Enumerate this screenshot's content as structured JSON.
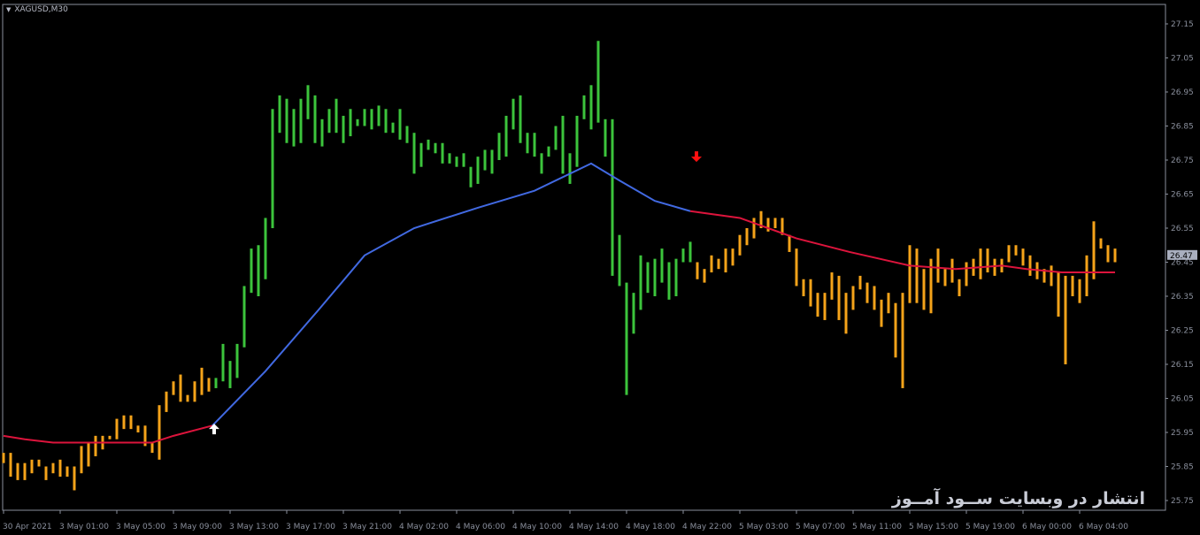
{
  "header": {
    "symbol_timeframe": "XAGUSD,M30",
    "collapse_icon": "triangle-down-icon"
  },
  "watermark": "انتشار در وبسایت ســود آمــوز",
  "colors": {
    "background": "#000000",
    "bull": "#3cc43c",
    "bear": "#f5a31a",
    "ma_up": "#4169e1",
    "ma_down": "#dc143c",
    "axis": "#8a8f9c",
    "buy_arrow": "#ffffff",
    "sell_arrow": "#ff1010",
    "price_tag": "#a9afbf"
  },
  "chart_data": {
    "type": "ohlc-bar",
    "symbol": "XAGUSD",
    "timeframe": "M30",
    "ylim": [
      25.72,
      27.2
    ],
    "y_ticks": [
      "27.15",
      "27.05",
      "26.95",
      "26.85",
      "26.75",
      "26.65",
      "26.55",
      "26.45",
      "26.35",
      "26.25",
      "26.15",
      "26.05",
      "25.95",
      "25.85",
      "25.75"
    ],
    "x_ticks": [
      {
        "bar": 0,
        "label": "30 Apr 2021"
      },
      {
        "bar": 8,
        "label": "3 May 01:00"
      },
      {
        "bar": 16,
        "label": "3 May 05:00"
      },
      {
        "bar": 24,
        "label": "3 May 09:00"
      },
      {
        "bar": 32,
        "label": "3 May 13:00"
      },
      {
        "bar": 40,
        "label": "3 May 17:00"
      },
      {
        "bar": 48,
        "label": "3 May 21:00"
      },
      {
        "bar": 56,
        "label": "4 May 02:00"
      },
      {
        "bar": 64,
        "label": "4 May 06:00"
      },
      {
        "bar": 72,
        "label": "4 May 10:00"
      },
      {
        "bar": 80,
        "label": "4 May 14:00"
      },
      {
        "bar": 88,
        "label": "4 May 18:00"
      },
      {
        "bar": 96,
        "label": "4 May 22:00"
      },
      {
        "bar": 104,
        "label": "5 May 03:00"
      },
      {
        "bar": 112,
        "label": "5 May 07:00"
      },
      {
        "bar": 120,
        "label": "5 May 11:00"
      },
      {
        "bar": 128,
        "label": "5 May 15:00"
      },
      {
        "bar": 136,
        "label": "5 May 19:00"
      },
      {
        "bar": 144,
        "label": "6 May 00:00"
      },
      {
        "bar": 152,
        "label": "6 May 04:00"
      }
    ],
    "current_price": "26.47",
    "bull_bar_range": [
      30,
      97
    ],
    "bars_high_low": [
      [
        25.89,
        25.86
      ],
      [
        25.89,
        25.82
      ],
      [
        25.86,
        25.81
      ],
      [
        25.86,
        25.81
      ],
      [
        25.87,
        25.83
      ],
      [
        25.87,
        25.85
      ],
      [
        25.85,
        25.81
      ],
      [
        25.86,
        25.83
      ],
      [
        25.87,
        25.82
      ],
      [
        25.85,
        25.82
      ],
      [
        25.85,
        25.78
      ],
      [
        25.91,
        25.83
      ],
      [
        25.92,
        25.85
      ],
      [
        25.94,
        25.88
      ],
      [
        25.94,
        25.9
      ],
      [
        25.94,
        25.93
      ],
      [
        25.99,
        25.93
      ],
      [
        26.0,
        25.96
      ],
      [
        26.0,
        25.96
      ],
      [
        25.97,
        25.95
      ],
      [
        25.97,
        25.91
      ],
      [
        25.92,
        25.89
      ],
      [
        26.03,
        25.87
      ],
      [
        26.07,
        26.01
      ],
      [
        26.1,
        26.06
      ],
      [
        26.12,
        26.04
      ],
      [
        26.06,
        26.04
      ],
      [
        26.1,
        26.04
      ],
      [
        26.14,
        26.06
      ],
      [
        26.11,
        26.07
      ],
      [
        26.11,
        26.08
      ],
      [
        26.21,
        26.1
      ],
      [
        26.16,
        26.08
      ],
      [
        26.21,
        26.11
      ],
      [
        26.38,
        26.2
      ],
      [
        26.49,
        26.36
      ],
      [
        26.5,
        26.35
      ],
      [
        26.58,
        26.4
      ],
      [
        26.9,
        26.55
      ],
      [
        26.94,
        26.83
      ],
      [
        26.93,
        26.8
      ],
      [
        26.9,
        26.79
      ],
      [
        26.93,
        26.8
      ],
      [
        26.97,
        26.87
      ],
      [
        26.94,
        26.8
      ],
      [
        26.87,
        26.79
      ],
      [
        26.9,
        26.83
      ],
      [
        26.93,
        26.83
      ],
      [
        26.88,
        26.8
      ],
      [
        26.9,
        26.82
      ],
      [
        26.87,
        26.85
      ],
      [
        26.9,
        26.85
      ],
      [
        26.9,
        26.84
      ],
      [
        26.91,
        26.85
      ],
      [
        26.9,
        26.83
      ],
      [
        26.86,
        26.83
      ],
      [
        26.9,
        26.81
      ],
      [
        26.85,
        26.8
      ],
      [
        26.83,
        26.71
      ],
      [
        26.8,
        26.73
      ],
      [
        26.81,
        26.78
      ],
      [
        26.8,
        26.77
      ],
      [
        26.8,
        26.74
      ],
      [
        26.77,
        26.74
      ],
      [
        26.76,
        26.73
      ],
      [
        26.77,
        26.73
      ],
      [
        26.73,
        26.67
      ],
      [
        26.76,
        26.68
      ],
      [
        26.78,
        26.72
      ],
      [
        26.78,
        26.71
      ],
      [
        26.83,
        26.75
      ],
      [
        26.88,
        26.76
      ],
      [
        26.93,
        26.84
      ],
      [
        26.94,
        26.8
      ],
      [
        26.83,
        26.77
      ],
      [
        26.83,
        26.76
      ],
      [
        26.77,
        26.71
      ],
      [
        26.79,
        26.76
      ],
      [
        26.85,
        26.78
      ],
      [
        26.88,
        26.71
      ],
      [
        26.77,
        26.68
      ],
      [
        26.88,
        26.73
      ],
      [
        26.94,
        26.87
      ],
      [
        26.97,
        26.84
      ],
      [
        27.1,
        26.86
      ],
      [
        26.87,
        26.76
      ],
      [
        26.87,
        26.41
      ],
      [
        26.53,
        26.38
      ],
      [
        26.39,
        26.06
      ],
      [
        26.36,
        26.24
      ],
      [
        26.47,
        26.31
      ],
      [
        26.45,
        26.36
      ],
      [
        26.46,
        26.35
      ],
      [
        26.49,
        26.39
      ],
      [
        26.45,
        26.34
      ],
      [
        26.46,
        26.35
      ],
      [
        26.49,
        26.45
      ],
      [
        26.51,
        26.45
      ],
      [
        26.45,
        26.4
      ],
      [
        26.43,
        26.39
      ],
      [
        26.47,
        26.42
      ],
      [
        26.46,
        26.43
      ],
      [
        26.49,
        26.42
      ],
      [
        26.49,
        26.44
      ],
      [
        26.53,
        26.47
      ],
      [
        26.55,
        26.5
      ],
      [
        26.58,
        26.52
      ],
      [
        26.6,
        26.55
      ],
      [
        26.58,
        26.54
      ],
      [
        26.58,
        26.55
      ],
      [
        26.58,
        26.53
      ],
      [
        26.53,
        26.48
      ],
      [
        26.49,
        26.38
      ],
      [
        26.4,
        26.35
      ],
      [
        26.4,
        26.32
      ],
      [
        26.36,
        26.29
      ],
      [
        26.36,
        26.28
      ],
      [
        26.42,
        26.34
      ],
      [
        26.41,
        26.28
      ],
      [
        26.36,
        26.24
      ],
      [
        26.38,
        26.31
      ],
      [
        26.41,
        26.37
      ],
      [
        26.39,
        26.33
      ],
      [
        26.38,
        26.31
      ],
      [
        26.34,
        26.26
      ],
      [
        26.36,
        26.3
      ],
      [
        26.33,
        26.17
      ],
      [
        26.36,
        26.08
      ],
      [
        26.5,
        26.33
      ],
      [
        26.49,
        26.33
      ],
      [
        26.43,
        26.31
      ],
      [
        26.46,
        26.3
      ],
      [
        26.49,
        26.39
      ],
      [
        26.43,
        26.38
      ],
      [
        26.46,
        26.39
      ],
      [
        26.4,
        26.35
      ],
      [
        26.45,
        26.38
      ],
      [
        26.46,
        26.41
      ],
      [
        26.49,
        26.4
      ],
      [
        26.49,
        26.42
      ],
      [
        26.46,
        26.41
      ],
      [
        26.46,
        26.42
      ],
      [
        26.5,
        26.45
      ],
      [
        26.5,
        26.47
      ],
      [
        26.49,
        26.44
      ],
      [
        26.47,
        26.41
      ],
      [
        26.45,
        26.4
      ],
      [
        26.43,
        26.39
      ],
      [
        26.44,
        26.38
      ],
      [
        26.42,
        26.29
      ],
      [
        26.41,
        26.15
      ],
      [
        26.41,
        26.35
      ],
      [
        26.4,
        26.33
      ],
      [
        26.47,
        26.35
      ],
      [
        26.57,
        26.4
      ],
      [
        26.52,
        26.49
      ],
      [
        26.5,
        26.45
      ],
      [
        26.49,
        26.45
      ]
    ],
    "moving_average": [
      {
        "trend": "down",
        "points": [
          [
            0,
            25.94
          ],
          [
            3,
            25.93
          ],
          [
            7,
            25.92
          ],
          [
            12,
            25.92
          ],
          [
            16,
            25.92
          ],
          [
            21,
            25.92
          ],
          [
            24,
            25.94
          ],
          [
            29.5,
            25.97
          ]
        ]
      },
      {
        "trend": "up",
        "points": [
          [
            29.5,
            25.97
          ],
          [
            37,
            26.13
          ],
          [
            44.5,
            26.31
          ],
          [
            51,
            26.47
          ],
          [
            58,
            26.55
          ],
          [
            67,
            26.61
          ],
          [
            75,
            26.66
          ],
          [
            83,
            26.74
          ],
          [
            87,
            26.69
          ],
          [
            92,
            26.63
          ],
          [
            97,
            26.6
          ]
        ]
      },
      {
        "trend": "down",
        "points": [
          [
            97,
            26.6
          ],
          [
            104,
            26.58
          ],
          [
            108,
            26.55
          ],
          [
            112,
            26.52
          ],
          [
            119.5,
            26.48
          ],
          [
            128,
            26.44
          ],
          [
            134.5,
            26.43
          ],
          [
            141,
            26.44
          ],
          [
            144.5,
            26.43
          ],
          [
            149.5,
            26.42
          ],
          [
            154.5,
            26.42
          ],
          [
            157,
            26.42
          ]
        ]
      }
    ],
    "signals": [
      {
        "type": "buy",
        "bar": 30,
        "price": 25.96,
        "icon": "arrow-up-icon"
      },
      {
        "type": "sell",
        "bar": 98,
        "price": 26.76,
        "icon": "arrow-down-icon"
      }
    ]
  }
}
